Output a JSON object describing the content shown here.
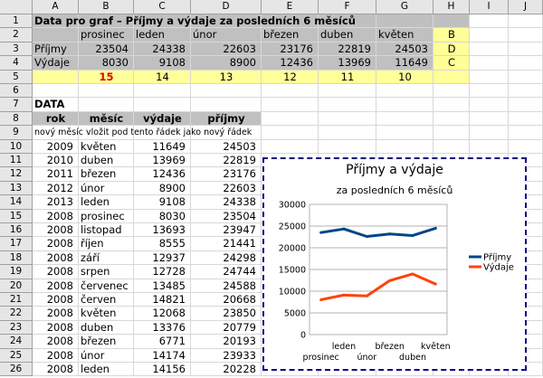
{
  "columns": [
    "A",
    "B",
    "C",
    "D",
    "E",
    "F",
    "G",
    "H",
    "I",
    "J"
  ],
  "rows": [
    "1",
    "2",
    "3",
    "4",
    "5",
    "6",
    "7",
    "8",
    "9",
    "10",
    "11",
    "12",
    "13",
    "14",
    "15",
    "16",
    "17",
    "18",
    "19",
    "20",
    "21",
    "22",
    "23",
    "24",
    "25",
    "26"
  ],
  "top": {
    "title": "Data pro graf – Příjmy a výdaje za posledních 6 měsíců",
    "months": [
      "prosinec",
      "leden",
      "únor",
      "březen",
      "duben",
      "květen"
    ],
    "prijmy_label": "Příjmy",
    "vydaje_label": "Výdaje",
    "prijmy": [
      "23504",
      "24338",
      "22603",
      "23176",
      "22819",
      "24503"
    ],
    "vydaje": [
      "8030",
      "9108",
      "8900",
      "12436",
      "13969",
      "11649"
    ],
    "row5": [
      "15",
      "14",
      "13",
      "12",
      "11",
      "10"
    ],
    "h_col": [
      "B",
      "D",
      "C"
    ]
  },
  "data_section": {
    "title": "DATA",
    "headers": [
      "rok",
      "měsíc",
      "výdaje",
      "příjmy"
    ],
    "note": "nový měsíc vložit pod tento řádek jako nový řádek",
    "rows": [
      [
        "2009",
        "květen",
        "11649",
        "24503"
      ],
      [
        "2010",
        "duben",
        "13969",
        "22819"
      ],
      [
        "2011",
        "březen",
        "12436",
        "23176"
      ],
      [
        "2012",
        "únor",
        "8900",
        "22603"
      ],
      [
        "2013",
        "leden",
        "9108",
        "24338"
      ],
      [
        "2008",
        "prosinec",
        "8030",
        "23504"
      ],
      [
        "2008",
        "listopad",
        "13693",
        "23947"
      ],
      [
        "2008",
        "říjen",
        "8555",
        "21441"
      ],
      [
        "2008",
        "září",
        "12937",
        "24298"
      ],
      [
        "2008",
        "srpen",
        "12728",
        "24744"
      ],
      [
        "2008",
        "červenec",
        "13485",
        "24588"
      ],
      [
        "2008",
        "červen",
        "14821",
        "20668"
      ],
      [
        "2008",
        "květen",
        "12068",
        "23850"
      ],
      [
        "2008",
        "duben",
        "13376",
        "20779"
      ],
      [
        "2008",
        "březen",
        "6771",
        "20193"
      ],
      [
        "2008",
        "únor",
        "14174",
        "23933"
      ],
      [
        "2008",
        "leden",
        "14156",
        "20228"
      ]
    ]
  },
  "chart_data": {
    "type": "line",
    "title": "Příjmy a výdaje",
    "subtitle": "za posledních 6 měsíců",
    "categories": [
      "prosinec",
      "leden",
      "únor",
      "březen",
      "duben",
      "květen"
    ],
    "series": [
      {
        "name": "Příjmy",
        "values": [
          23504,
          24338,
          22603,
          23176,
          22819,
          24503
        ],
        "color": "#004586"
      },
      {
        "name": "Výdaje",
        "values": [
          8030,
          9108,
          8900,
          12436,
          13969,
          11649
        ],
        "color": "#ff420e"
      }
    ],
    "ylim": [
      0,
      30000
    ],
    "yticks": [
      "0",
      "5000",
      "10000",
      "15000",
      "20000",
      "25000",
      "30000"
    ],
    "grid": true,
    "legend": "right"
  }
}
